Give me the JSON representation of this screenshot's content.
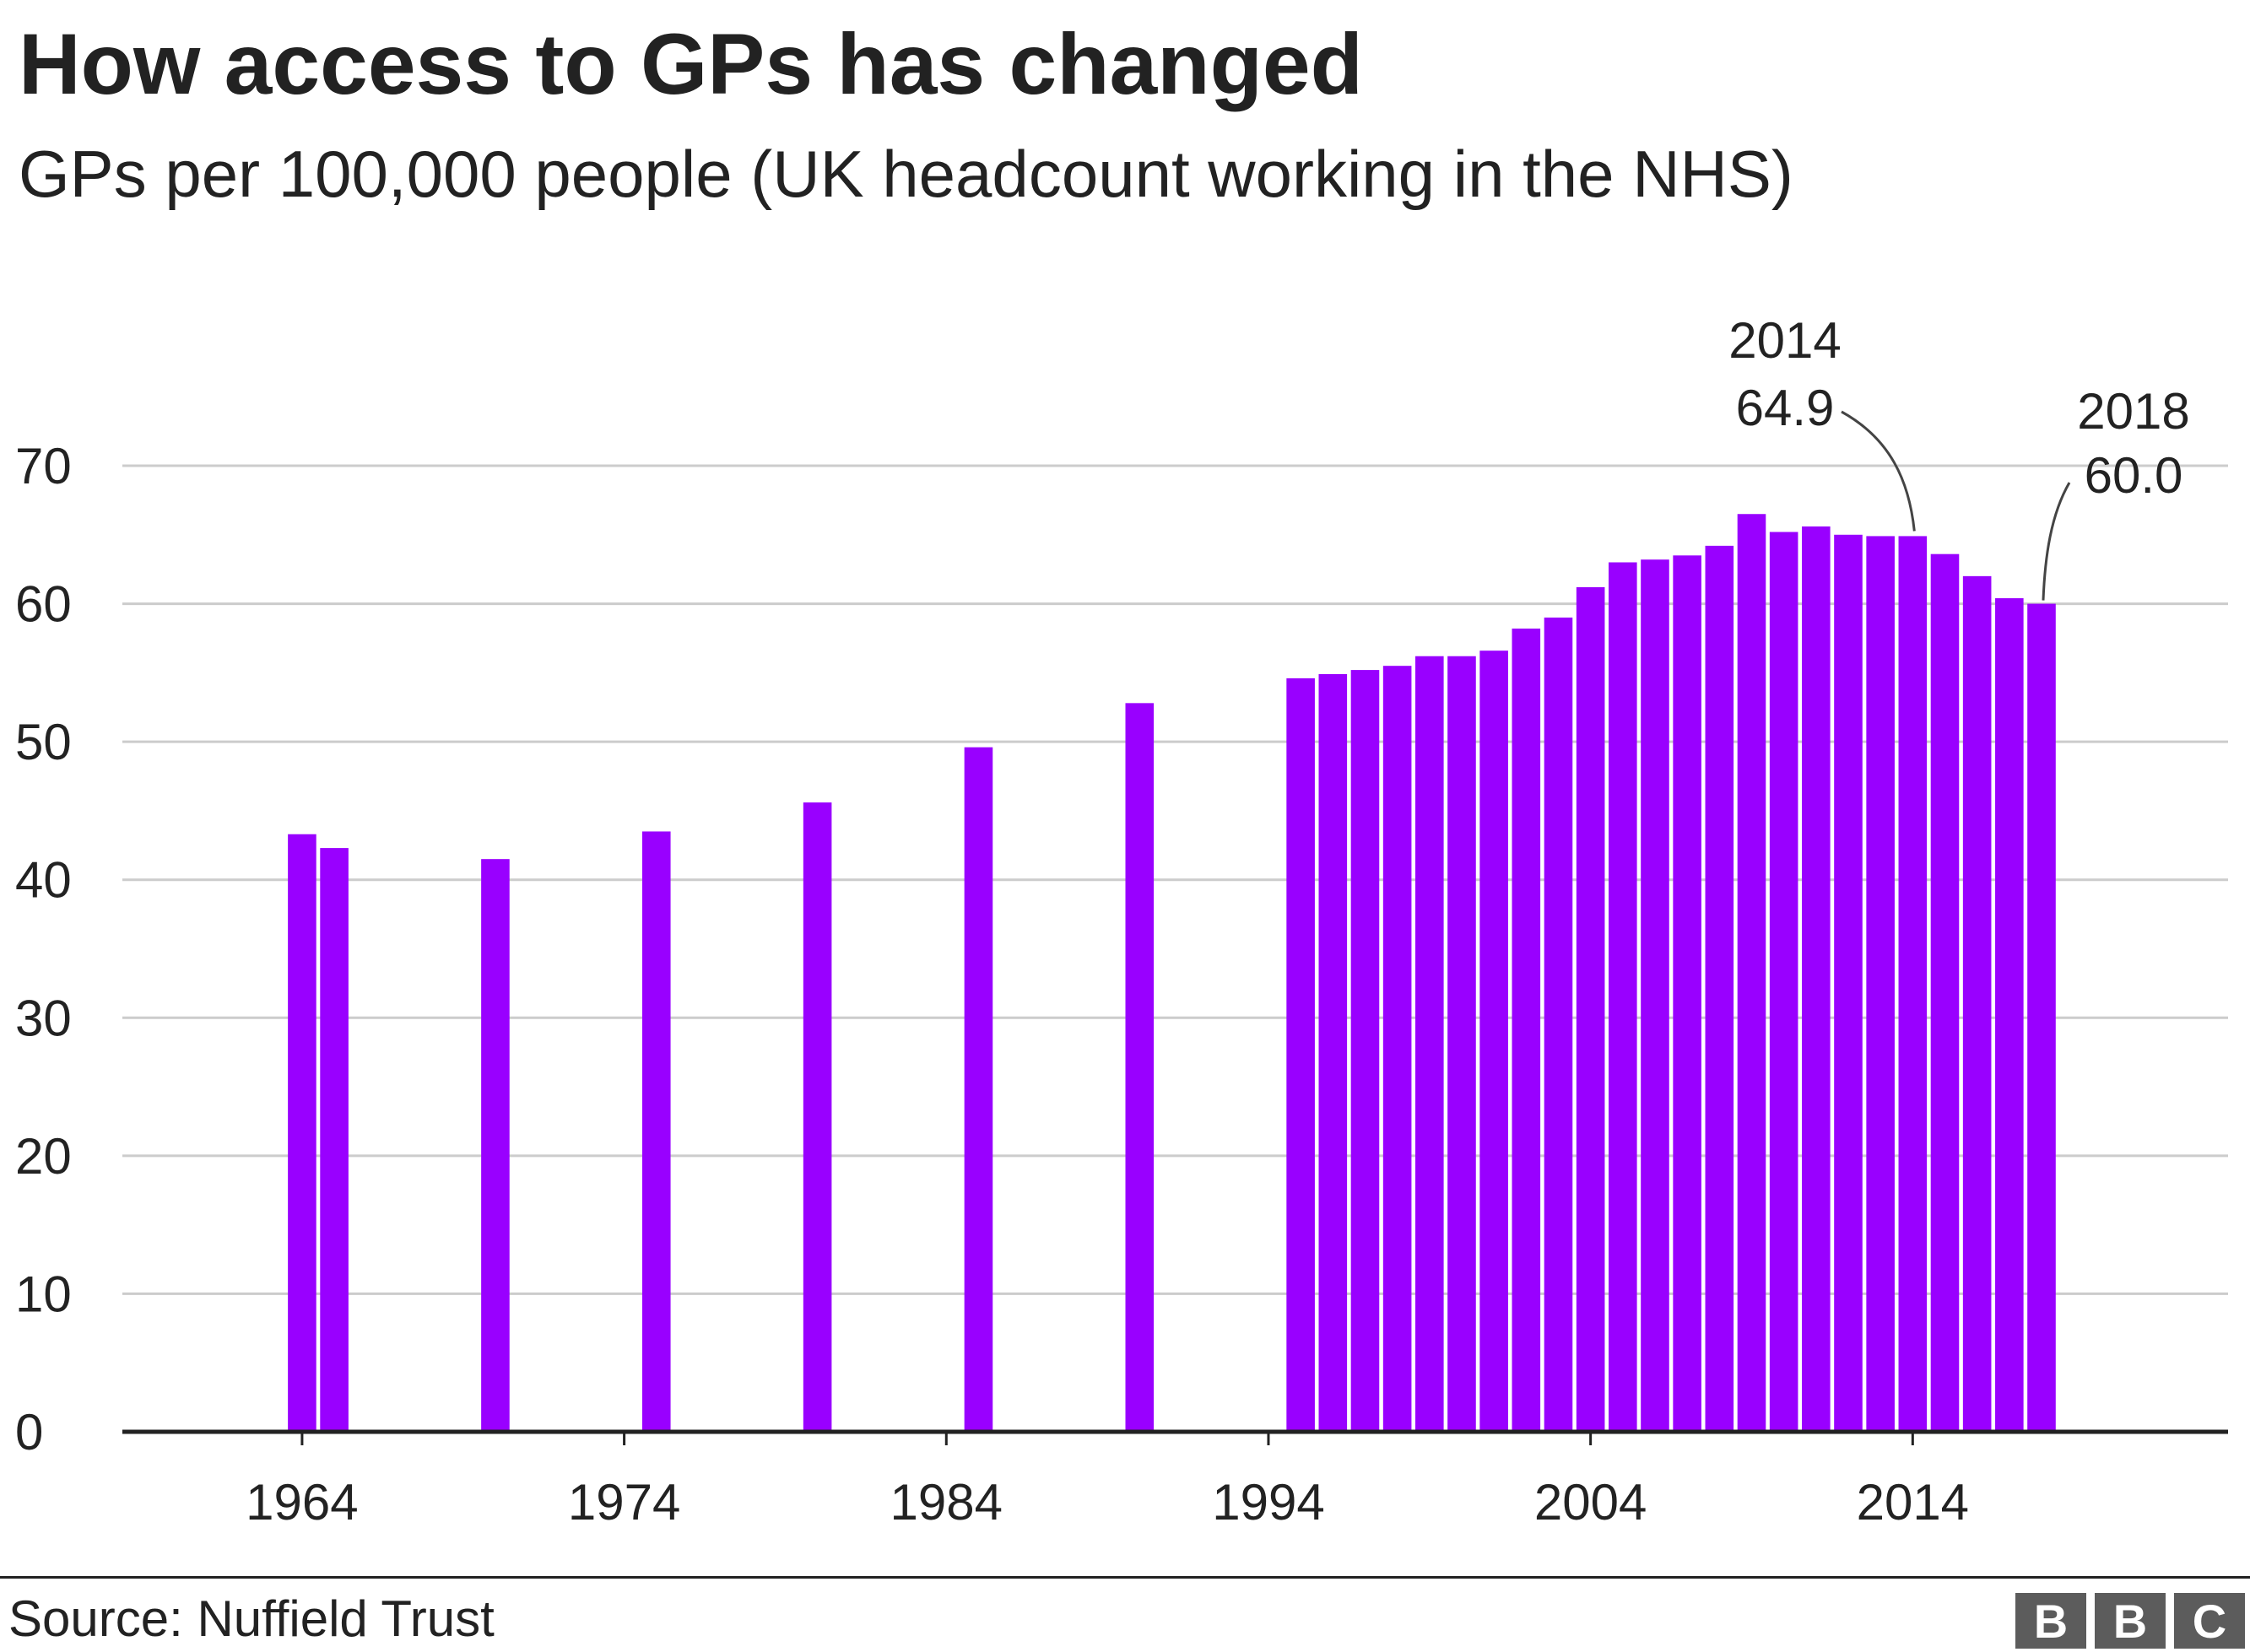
{
  "header": {
    "title": "How access to GPs has changed",
    "subtitle": "GPs per 100,000 people (UK headcount working in the NHS)"
  },
  "footer": {
    "source": "Source: Nuffield Trust",
    "logo": [
      "B",
      "B",
      "C"
    ]
  },
  "colors": {
    "bar": "#9900ff",
    "grid": "#cccccc",
    "axis": "#222222",
    "text": "#222222"
  },
  "chart_data": {
    "type": "bar",
    "title": "How access to GPs has changed",
    "subtitle": "GPs per 100,000 people (UK headcount working in the NHS)",
    "xlabel": "",
    "ylabel": "",
    "ylim": [
      0,
      70
    ],
    "yticks": [
      0,
      10,
      20,
      30,
      40,
      50,
      60,
      70
    ],
    "xlim": [
      1958.5,
      2024
    ],
    "xticks": [
      1964,
      1974,
      1984,
      1994,
      2004,
      2014
    ],
    "grid": true,
    "legend": "none",
    "x": [
      1964,
      1965,
      1970,
      1975,
      1980,
      1985,
      1990,
      1995,
      1996,
      1997,
      1998,
      1999,
      2000,
      2001,
      2002,
      2003,
      2004,
      2005,
      2006,
      2007,
      2008,
      2009,
      2010,
      2011,
      2012,
      2013,
      2014,
      2015,
      2016,
      2017,
      2018
    ],
    "values": [
      43.3,
      42.3,
      41.5,
      43.5,
      45.6,
      49.6,
      52.8,
      54.6,
      54.9,
      55.2,
      55.5,
      56.2,
      56.2,
      56.6,
      58.2,
      59.0,
      61.2,
      63.0,
      63.2,
      63.5,
      64.2,
      66.5,
      65.2,
      65.6,
      65.0,
      64.9,
      64.9,
      63.6,
      62.0,
      60.4,
      60.0
    ],
    "annotations": [
      {
        "year": "2014",
        "value": "64.9",
        "x": 2014
      },
      {
        "year": "2018",
        "value": "60.0",
        "x": 2018
      }
    ]
  }
}
